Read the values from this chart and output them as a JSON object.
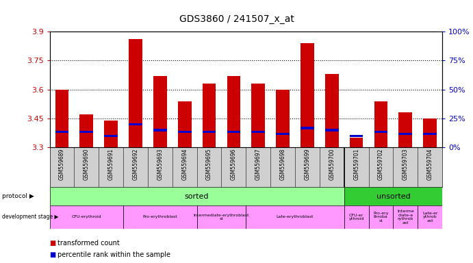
{
  "title": "GDS3860 / 241507_x_at",
  "samples": [
    "GSM559689",
    "GSM559690",
    "GSM559691",
    "GSM559692",
    "GSM559693",
    "GSM559694",
    "GSM559695",
    "GSM559696",
    "GSM559697",
    "GSM559698",
    "GSM559699",
    "GSM559700",
    "GSM559701",
    "GSM559702",
    "GSM559703",
    "GSM559704"
  ],
  "red_values": [
    3.6,
    3.47,
    3.44,
    3.86,
    3.67,
    3.54,
    3.63,
    3.67,
    3.63,
    3.6,
    3.84,
    3.68,
    3.35,
    3.54,
    3.48,
    3.45
  ],
  "blue_values": [
    3.38,
    3.38,
    3.36,
    3.42,
    3.39,
    3.38,
    3.38,
    3.38,
    3.38,
    3.37,
    3.4,
    3.39,
    3.36,
    3.38,
    3.37,
    3.37
  ],
  "ymin": 3.3,
  "ymax": 3.9,
  "yticks": [
    3.3,
    3.45,
    3.6,
    3.75,
    3.9
  ],
  "y2ticks": [
    0,
    25,
    50,
    75,
    100
  ],
  "bar_color": "#cc0000",
  "blue_color": "#0000cc",
  "bg_color": "#ffffff",
  "grid_color": "#000000",
  "axis_label_color_left": "#cc0000",
  "axis_label_color_right": "#0000cc",
  "sorted_color": "#99ff99",
  "unsorted_color": "#33cc33",
  "dev_stage_color": "#ff99ff",
  "label_bg_color": "#d0d0d0",
  "dev_stage_groups_sorted": [
    {
      "label": "CFU-erythroid",
      "start": 0,
      "end": 2
    },
    {
      "label": "Pro-erythroblast",
      "start": 3,
      "end": 5
    },
    {
      "label": "Intermediate-erythroblast\nst",
      "start": 6,
      "end": 7
    },
    {
      "label": "Late-erythroblast",
      "start": 8,
      "end": 11
    }
  ],
  "dev_stage_groups_unsorted": [
    {
      "label": "CFU-er\nythroid",
      "start": 12,
      "end": 12
    },
    {
      "label": "Pro-ery\nthroba\nst",
      "start": 13,
      "end": 13
    },
    {
      "label": "Interme\ndiate-e\nrythrob\nast",
      "start": 14,
      "end": 14
    },
    {
      "label": "Late-er\nythrob\nast",
      "start": 15,
      "end": 15
    }
  ]
}
